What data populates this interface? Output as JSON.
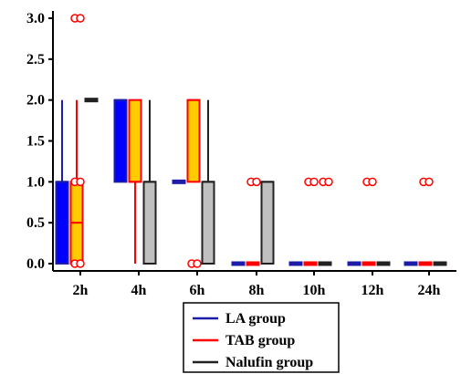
{
  "chart_data": {
    "type": "box",
    "title": "",
    "xlabel": "",
    "ylabel": "",
    "categories": [
      "2h",
      "4h",
      "6h",
      "8h",
      "10h",
      "12h",
      "24h"
    ],
    "ylim": [
      -0.05,
      3.1
    ],
    "yticks": [
      0.0,
      0.5,
      1.0,
      1.5,
      2.0,
      2.5,
      3.0
    ],
    "ytick_labels": [
      "0.0",
      "0.5",
      "1.0",
      "1.5",
      "2.0",
      "2.5",
      "3.0"
    ],
    "grid": false,
    "legend_position": "bottom-center",
    "series": [
      {
        "name": "LA group",
        "color": "#1c1ca8",
        "fill": "#0000ff",
        "boxes": [
          {
            "category": "2h",
            "min": 0,
            "q1": 0,
            "median": 1,
            "q3": 1,
            "max": 2,
            "outliers": []
          },
          {
            "category": "4h",
            "min": 1,
            "q1": 1,
            "median": 2,
            "q3": 2,
            "max": 2,
            "outliers": []
          },
          {
            "category": "6h",
            "min": 1,
            "q1": 1,
            "median": 1,
            "q3": 1,
            "max": 1,
            "outliers": []
          },
          {
            "category": "8h",
            "min": 0,
            "q1": 0,
            "median": 0,
            "q3": 0,
            "max": 0,
            "outliers": []
          },
          {
            "category": "10h",
            "min": 0,
            "q1": 0,
            "median": 0,
            "q3": 0,
            "max": 0,
            "outliers": []
          },
          {
            "category": "12h",
            "min": 0,
            "q1": 0,
            "median": 0,
            "q3": 0,
            "max": 0,
            "outliers": []
          },
          {
            "category": "24h",
            "min": 0,
            "q1": 0,
            "median": 0,
            "q3": 0,
            "max": 0,
            "outliers": []
          }
        ]
      },
      {
        "name": "TAB group",
        "color": "#ff0000",
        "fill": "#ffcc00",
        "boxes": [
          {
            "category": "2h",
            "min": 0,
            "q1": 0,
            "median": 0.5,
            "q3": 1,
            "max": 2,
            "outliers": [
              0,
              1,
              3
            ]
          },
          {
            "category": "4h",
            "min": 0,
            "q1": 1,
            "median": 1,
            "q3": 2,
            "max": 2,
            "outliers": []
          },
          {
            "category": "6h",
            "min": 1,
            "q1": 1,
            "median": 2,
            "q3": 2,
            "max": 2,
            "outliers": [
              0
            ]
          },
          {
            "category": "8h",
            "min": 0,
            "q1": 0,
            "median": 0,
            "q3": 0,
            "max": 0,
            "outliers": [
              1
            ]
          },
          {
            "category": "10h",
            "min": 0,
            "q1": 0,
            "median": 0,
            "q3": 0,
            "max": 0,
            "outliers": [
              1
            ]
          },
          {
            "category": "12h",
            "min": 0,
            "q1": 0,
            "median": 0,
            "q3": 0,
            "max": 0,
            "outliers": [
              1
            ]
          },
          {
            "category": "24h",
            "min": 0,
            "q1": 0,
            "median": 0,
            "q3": 0,
            "max": 0,
            "outliers": [
              1
            ]
          }
        ]
      },
      {
        "name": "Nalufin group",
        "color": "#222222",
        "fill": "#c0c0c0",
        "boxes": [
          {
            "category": "2h",
            "min": 2,
            "q1": 2,
            "median": 2,
            "q3": 2,
            "max": 2,
            "outliers": []
          },
          {
            "category": "4h",
            "min": 0,
            "q1": 0,
            "median": 1,
            "q3": 1,
            "max": 2,
            "outliers": []
          },
          {
            "category": "6h",
            "min": 0,
            "q1": 0,
            "median": 1,
            "q3": 1,
            "max": 2,
            "outliers": []
          },
          {
            "category": "8h",
            "min": 0,
            "q1": 0,
            "median": 1,
            "q3": 1,
            "max": 1,
            "outliers": []
          },
          {
            "category": "10h",
            "min": 0,
            "q1": 0,
            "median": 0,
            "q3": 0,
            "max": 0,
            "outliers": [
              1
            ]
          },
          {
            "category": "12h",
            "min": 0,
            "q1": 0,
            "median": 0,
            "q3": 0,
            "max": 0,
            "outliers": []
          },
          {
            "category": "24h",
            "min": 0,
            "q1": 0,
            "median": 0,
            "q3": 0,
            "max": 0,
            "outliers": []
          }
        ]
      }
    ]
  }
}
